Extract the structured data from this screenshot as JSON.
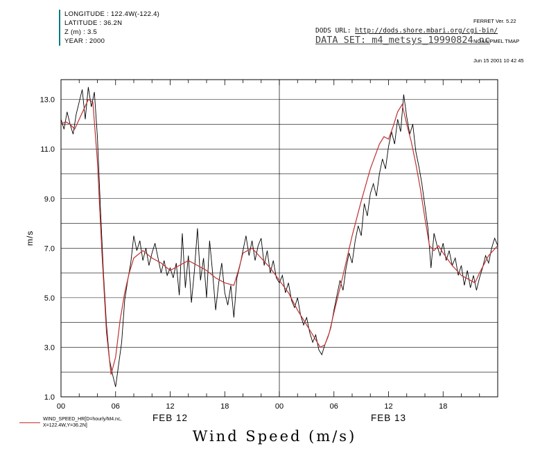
{
  "header": {
    "meta_lines": [
      "LONGITUDE : 122.4W(-122.4)",
      "LATITUDE : 36.2N",
      "Z (m) : 3.5",
      "YEAR : 2000"
    ],
    "accent_color": "#007a7a",
    "ferret_lines": [
      "FERRET Ver. 5.22",
      "NOAA/PMEL TMAP",
      "Jun 15 2001 10 42 45"
    ],
    "dods_label": "DODS URL: ",
    "dods_url": "http://dods.shore.mbari.org/cgi-bin/",
    "dataset_line": "DATA SET: m4_metsys_19990824.nc"
  },
  "legend": {
    "line1": "WIND_SPEED_HR[D=hourly/M4.nc,",
    "line2": "X=122.4W,Y=36.2N]",
    "color": "#c03030"
  },
  "chart_data": {
    "type": "line",
    "title": "Wind Speed (m/s)",
    "ylabel": "m/s",
    "xlabel": "",
    "ylim": [
      1.0,
      13.8
    ],
    "xlim_hours": [
      0,
      48
    ],
    "grid": "horizontal gridlines every 1.0 m/s; single vertical line at day boundary",
    "legend_position": "bottom-left",
    "y_tick_values": [
      1,
      3,
      5,
      7,
      9,
      11,
      13
    ],
    "y_tick_labels": [
      "1.0",
      "3.0",
      "5.0",
      "7.0",
      "9.0",
      "11.0",
      "13.0"
    ],
    "y_grid_values": [
      2,
      3,
      4,
      5,
      6,
      7,
      8,
      9,
      10,
      11,
      12,
      13
    ],
    "x_major_hours": [
      0,
      6,
      12,
      18,
      24,
      30,
      36,
      42
    ],
    "x_tick_labels": [
      "00",
      "06",
      "12",
      "18",
      "00",
      "06",
      "12",
      "18"
    ],
    "x_minor_step_hours": 2,
    "day_separator_hour": 24,
    "day_labels": [
      {
        "label": "FEB 12",
        "center_hour": 12
      },
      {
        "label": "FEB 13",
        "center_hour": 36
      }
    ],
    "series": [
      {
        "name": "wind_speed_raw_10min",
        "color": "#000000",
        "sampling": "uniform over xlim_hours",
        "values": [
          12.2,
          11.8,
          12.5,
          12.0,
          11.6,
          12.4,
          12.9,
          13.4,
          12.2,
          13.5,
          12.7,
          13.3,
          11.5,
          8.6,
          6.0,
          3.9,
          2.5,
          1.9,
          1.4,
          2.3,
          3.2,
          4.9,
          5.7,
          6.4,
          7.5,
          6.9,
          7.3,
          6.5,
          7.0,
          6.3,
          6.8,
          7.2,
          6.6,
          6.0,
          6.5,
          5.9,
          6.2,
          5.8,
          6.4,
          5.1,
          7.6,
          5.4,
          6.7,
          4.8,
          6.1,
          7.8,
          5.7,
          6.6,
          5.0,
          7.3,
          6.0,
          4.5,
          5.6,
          6.4,
          5.2,
          4.7,
          5.5,
          4.2,
          5.8,
          6.3,
          6.9,
          7.5,
          6.7,
          7.3,
          6.5,
          7.1,
          7.4,
          6.3,
          6.9,
          6.0,
          6.5,
          5.8,
          5.6,
          5.9,
          5.2,
          5.6,
          4.9,
          4.6,
          5.0,
          4.3,
          3.9,
          4.2,
          3.6,
          3.2,
          3.5,
          2.9,
          2.7,
          3.1,
          3.4,
          3.8,
          4.5,
          5.1,
          5.7,
          5.3,
          6.2,
          6.8,
          6.4,
          7.3,
          7.9,
          7.5,
          8.8,
          8.3,
          9.2,
          9.6,
          9.1,
          10.0,
          10.6,
          10.2,
          11.1,
          11.7,
          11.2,
          12.2,
          11.7,
          13.2,
          12.3,
          11.6,
          12.0,
          10.9,
          10.3,
          9.6,
          8.7,
          7.8,
          6.2,
          7.6,
          7.1,
          6.7,
          7.2,
          6.5,
          6.9,
          6.3,
          6.6,
          5.9,
          6.3,
          5.5,
          6.1,
          5.4,
          5.9,
          5.3,
          5.8,
          6.2,
          6.7,
          6.4,
          7.0,
          7.4,
          7.1
        ]
      },
      {
        "name": "WIND_SPEED_HR[D=hourly/M4.nc, X=122.4W, Y=36.2N]",
        "color": "#c03030",
        "points": [
          [
            0,
            12.0
          ],
          [
            0.5,
            12.1
          ],
          [
            1,
            12.0
          ],
          [
            1.5,
            11.8
          ],
          [
            2,
            12.2
          ],
          [
            2.5,
            12.6
          ],
          [
            3,
            13.0
          ],
          [
            3.5,
            12.9
          ],
          [
            4,
            10.5
          ],
          [
            4.5,
            6.8
          ],
          [
            5,
            3.6
          ],
          [
            5.5,
            1.9
          ],
          [
            6,
            2.6
          ],
          [
            6.5,
            4.1
          ],
          [
            7,
            5.2
          ],
          [
            7.5,
            6.0
          ],
          [
            8,
            6.6
          ],
          [
            9,
            6.9
          ],
          [
            10,
            6.6
          ],
          [
            11,
            6.4
          ],
          [
            12,
            6.1
          ],
          [
            13,
            6.3
          ],
          [
            14,
            6.5
          ],
          [
            15,
            6.3
          ],
          [
            16,
            6.1
          ],
          [
            17,
            5.8
          ],
          [
            18,
            5.6
          ],
          [
            19,
            5.5
          ],
          [
            19.5,
            6.1
          ],
          [
            20,
            6.8
          ],
          [
            21,
            7.0
          ],
          [
            22,
            6.6
          ],
          [
            23,
            6.2
          ],
          [
            24,
            5.7
          ],
          [
            25,
            5.2
          ],
          [
            26,
            4.5
          ],
          [
            27,
            3.9
          ],
          [
            28,
            3.3
          ],
          [
            28.5,
            3.0
          ],
          [
            29,
            3.1
          ],
          [
            29.5,
            3.6
          ],
          [
            30,
            4.4
          ],
          [
            31,
            5.9
          ],
          [
            32,
            7.5
          ],
          [
            33,
            8.9
          ],
          [
            34,
            10.2
          ],
          [
            35,
            11.2
          ],
          [
            35.5,
            11.5
          ],
          [
            36,
            11.4
          ],
          [
            36.5,
            11.9
          ],
          [
            37,
            12.5
          ],
          [
            37.5,
            12.8
          ],
          [
            38,
            12.0
          ],
          [
            38.5,
            11.3
          ],
          [
            39,
            10.4
          ],
          [
            39.5,
            9.4
          ],
          [
            40,
            8.2
          ],
          [
            40.5,
            7.1
          ],
          [
            41,
            6.9
          ],
          [
            41.5,
            7.1
          ],
          [
            42,
            6.8
          ],
          [
            43,
            6.3
          ],
          [
            44,
            5.9
          ],
          [
            45,
            5.7
          ],
          [
            45.5,
            5.6
          ],
          [
            46,
            6.0
          ],
          [
            47,
            6.7
          ],
          [
            48,
            7.1
          ]
        ]
      }
    ]
  }
}
